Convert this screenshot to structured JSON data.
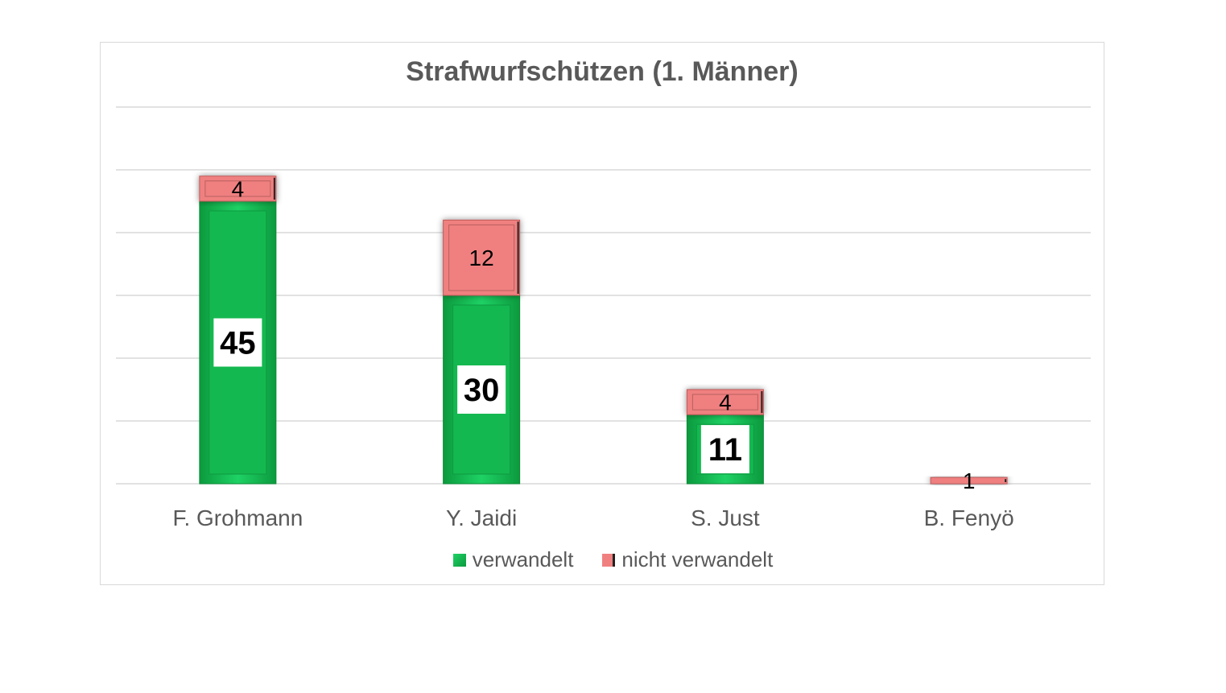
{
  "chart_data": {
    "type": "bar",
    "stacked": true,
    "title": "Strafwurfschützen (1. Männer)",
    "categories": [
      "F. Grohmann",
      "Y. Jaidi",
      "S. Just",
      "B. Fenyö"
    ],
    "series": [
      {
        "name": "verwandelt",
        "values": [
          45,
          30,
          11,
          0
        ],
        "color": "#12b24c"
      },
      {
        "name": "nicht verwandelt",
        "values": [
          4,
          12,
          4,
          1
        ],
        "color": "#f08080"
      }
    ],
    "ylim": [
      0,
      60
    ],
    "ytick_step": 10,
    "grid": true,
    "y_axis_labels_shown": false,
    "legend": "bottom"
  }
}
